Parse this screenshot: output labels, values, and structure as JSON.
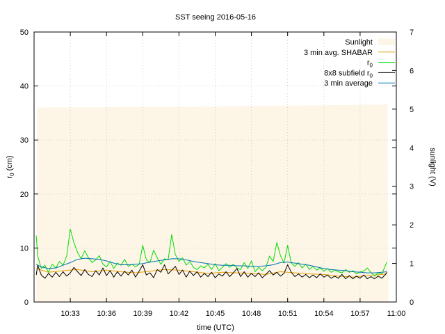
{
  "chart_data": {
    "type": "line",
    "title": "SST seeing 2016-05-16",
    "xlabel": "time (UTC)",
    "ylabel_main": "r",
    "ylabel_sub": "0",
    "ylabel_unit": " (cm)",
    "y2label": "sunlight (V)",
    "xlim": [
      10.5,
      11.0
    ],
    "ylim": [
      0,
      50
    ],
    "y2lim": [
      0,
      7
    ],
    "grid": true,
    "legend_position": "top-right",
    "x_ticks": [
      {
        "value": 10.55,
        "label": "10:33"
      },
      {
        "value": 10.6,
        "label": "10:36"
      },
      {
        "value": 10.65,
        "label": "10:39"
      },
      {
        "value": 10.7,
        "label": "10:42"
      },
      {
        "value": 10.75,
        "label": "10:45"
      },
      {
        "value": 10.8,
        "label": "10:48"
      },
      {
        "value": 10.85,
        "label": "10:51"
      },
      {
        "value": 10.9,
        "label": "10:54"
      },
      {
        "value": 10.95,
        "label": "10:57"
      },
      {
        "value": 11.0,
        "label": "11:00"
      }
    ],
    "y_ticks": [
      "0",
      "10",
      "20",
      "30",
      "40",
      "50"
    ],
    "y2_ticks": [
      "0",
      "1",
      "2",
      "3",
      "4",
      "5",
      "6",
      "7"
    ],
    "series": [
      {
        "name": "Sunlight",
        "legend_main": "Sunlight",
        "legend_sub": "",
        "kind": "filled",
        "axis": "y2",
        "color": "#fdf5e6",
        "x": [
          10.503,
          10.504,
          10.6,
          10.75,
          10.9,
          10.988,
          10.989
        ],
        "y": [
          0,
          5.04,
          5.05,
          5.07,
          5.1,
          5.12,
          0
        ]
      },
      {
        "name": "3 min avg. SHABAR",
        "legend_main": "3 min avg. SHABAR",
        "legend_sub": "",
        "kind": "line",
        "axis": "y",
        "color": "#e69f00",
        "x": [
          10.503,
          10.52,
          10.54,
          10.56,
          10.58,
          10.6,
          10.62,
          10.64,
          10.66,
          10.68,
          10.7,
          10.72,
          10.74,
          10.76,
          10.78,
          10.8,
          10.82,
          10.84,
          10.86,
          10.88,
          10.9,
          10.92,
          10.94,
          10.96,
          10.98,
          10.987
        ],
        "y": [
          6.2,
          5.5,
          5.8,
          6.0,
          5.6,
          5.9,
          5.6,
          5.4,
          5.7,
          6.0,
          5.9,
          5.6,
          5.3,
          5.5,
          5.4,
          5.3,
          5.1,
          5.6,
          5.4,
          5.2,
          5.1,
          4.8,
          4.6,
          4.9,
          5.1,
          5.2
        ]
      },
      {
        "name": "r0",
        "legend_main": "r",
        "legend_sub": "0",
        "kind": "line",
        "axis": "y",
        "color": "#00dd00",
        "x": [
          10.503,
          10.505,
          10.51,
          10.515,
          10.52,
          10.525,
          10.53,
          10.535,
          10.54,
          10.545,
          10.55,
          10.555,
          10.56,
          10.565,
          10.57,
          10.575,
          10.58,
          10.585,
          10.59,
          10.595,
          10.6,
          10.605,
          10.61,
          10.615,
          10.62,
          10.625,
          10.63,
          10.635,
          10.64,
          10.645,
          10.65,
          10.655,
          10.66,
          10.665,
          10.67,
          10.675,
          10.68,
          10.685,
          10.69,
          10.695,
          10.7,
          10.705,
          10.71,
          10.715,
          10.72,
          10.725,
          10.73,
          10.735,
          10.74,
          10.745,
          10.75,
          10.755,
          10.76,
          10.765,
          10.77,
          10.775,
          10.78,
          10.785,
          10.79,
          10.795,
          10.8,
          10.805,
          10.81,
          10.815,
          10.82,
          10.825,
          10.83,
          10.835,
          10.84,
          10.845,
          10.85,
          10.855,
          10.86,
          10.865,
          10.87,
          10.875,
          10.88,
          10.885,
          10.89,
          10.895,
          10.9,
          10.905,
          10.91,
          10.915,
          10.92,
          10.925,
          10.93,
          10.935,
          10.94,
          10.945,
          10.95,
          10.955,
          10.96,
          10.965,
          10.97,
          10.975,
          10.98,
          10.985,
          10.987
        ],
        "y": [
          12.3,
          8.5,
          6.2,
          6.8,
          5.5,
          7.0,
          6.3,
          7.5,
          6.8,
          8.5,
          13.5,
          11.0,
          9.2,
          8.0,
          9.5,
          8.2,
          7.3,
          7.8,
          8.6,
          7.0,
          6.5,
          7.5,
          6.2,
          7.2,
          6.8,
          7.9,
          6.6,
          7.0,
          6.5,
          7.0,
          10.5,
          7.8,
          7.3,
          9.6,
          8.2,
          7.0,
          8.0,
          7.8,
          12.5,
          8.8,
          7.5,
          8.2,
          6.8,
          7.5,
          6.4,
          6.0,
          6.7,
          6.3,
          7.0,
          6.0,
          7.1,
          5.8,
          6.4,
          7.1,
          6.4,
          7.0,
          6.3,
          6.0,
          7.3,
          6.2,
          7.6,
          5.6,
          6.4,
          5.8,
          6.4,
          8.5,
          7.5,
          11.0,
          8.6,
          7.2,
          10.5,
          7.2,
          6.6,
          7.3,
          6.3,
          7.0,
          6.0,
          6.6,
          5.9,
          6.3,
          5.7,
          6.2,
          5.5,
          5.9,
          5.6,
          5.4,
          6.0,
          5.5,
          5.8,
          5.2,
          5.6,
          5.7,
          6.3,
          5.5,
          4.8,
          5.4,
          5.2,
          6.8,
          7.4
        ]
      },
      {
        "name": "8x8 subfield r0",
        "legend_main": "8x8 subfield r",
        "legend_sub": "0",
        "kind": "line",
        "axis": "y",
        "color": "#000000",
        "x": [
          10.503,
          10.505,
          10.51,
          10.515,
          10.52,
          10.525,
          10.53,
          10.535,
          10.54,
          10.545,
          10.55,
          10.555,
          10.56,
          10.565,
          10.57,
          10.575,
          10.58,
          10.585,
          10.59,
          10.595,
          10.6,
          10.605,
          10.61,
          10.615,
          10.62,
          10.625,
          10.63,
          10.635,
          10.64,
          10.645,
          10.65,
          10.655,
          10.66,
          10.665,
          10.67,
          10.675,
          10.68,
          10.685,
          10.69,
          10.695,
          10.7,
          10.705,
          10.71,
          10.715,
          10.72,
          10.725,
          10.73,
          10.735,
          10.74,
          10.745,
          10.75,
          10.755,
          10.76,
          10.765,
          10.77,
          10.775,
          10.78,
          10.785,
          10.79,
          10.795,
          10.8,
          10.805,
          10.81,
          10.815,
          10.82,
          10.825,
          10.83,
          10.835,
          10.84,
          10.845,
          10.85,
          10.855,
          10.86,
          10.865,
          10.87,
          10.875,
          10.88,
          10.885,
          10.89,
          10.895,
          10.9,
          10.905,
          10.91,
          10.915,
          10.92,
          10.925,
          10.93,
          10.935,
          10.94,
          10.945,
          10.95,
          10.955,
          10.96,
          10.965,
          10.97,
          10.975,
          10.98,
          10.985,
          10.987
        ],
        "y": [
          5.0,
          6.8,
          5.0,
          4.4,
          5.3,
          4.6,
          5.5,
          4.7,
          5.6,
          4.8,
          5.4,
          6.4,
          5.6,
          4.9,
          6.0,
          5.1,
          4.7,
          5.8,
          5.0,
          6.3,
          4.9,
          5.8,
          4.6,
          5.6,
          4.8,
          5.7,
          5.0,
          5.9,
          4.6,
          5.7,
          6.9,
          5.0,
          5.4,
          4.5,
          6.0,
          5.5,
          6.9,
          5.2,
          5.9,
          6.6,
          5.1,
          5.9,
          4.6,
          5.7,
          4.9,
          5.6,
          4.6,
          5.3,
          4.7,
          5.5,
          4.5,
          5.2,
          4.8,
          5.6,
          4.7,
          5.4,
          6.2,
          4.7,
          5.6,
          4.6,
          5.3,
          4.7,
          5.4,
          4.5,
          5.1,
          5.8,
          5.0,
          5.5,
          4.8,
          5.3,
          6.9,
          5.5,
          4.7,
          5.2,
          4.6,
          5.1,
          4.5,
          5.0,
          4.5,
          5.2,
          4.6,
          5.0,
          4.4,
          4.8,
          4.4,
          5.1,
          4.3,
          4.9,
          4.3,
          4.8,
          4.4,
          5.0,
          4.3,
          4.7,
          4.3,
          4.8,
          4.4,
          5.1,
          5.5
        ]
      },
      {
        "name": "3 min average",
        "legend_main": "3 min average",
        "legend_sub": "",
        "kind": "line",
        "axis": "y",
        "color": "#0072b2",
        "x": [
          10.503,
          10.51,
          10.52,
          10.53,
          10.54,
          10.55,
          10.56,
          10.57,
          10.58,
          10.59,
          10.6,
          10.61,
          10.62,
          10.63,
          10.64,
          10.65,
          10.66,
          10.67,
          10.68,
          10.69,
          10.7,
          10.71,
          10.72,
          10.73,
          10.74,
          10.75,
          10.76,
          10.77,
          10.78,
          10.79,
          10.8,
          10.81,
          10.82,
          10.83,
          10.84,
          10.85,
          10.86,
          10.87,
          10.88,
          10.89,
          10.9,
          10.91,
          10.92,
          10.93,
          10.94,
          10.95,
          10.96,
          10.97,
          10.98,
          10.987
        ],
        "y": [
          7.0,
          6.5,
          6.2,
          6.3,
          6.8,
          7.3,
          7.9,
          8.1,
          8.0,
          7.9,
          7.6,
          7.2,
          6.9,
          6.9,
          7.0,
          7.1,
          7.4,
          7.6,
          7.8,
          8.0,
          8.0,
          7.8,
          7.5,
          7.3,
          7.1,
          6.9,
          6.8,
          6.8,
          6.7,
          6.7,
          6.6,
          6.6,
          6.7,
          6.9,
          7.3,
          7.4,
          7.2,
          7.0,
          6.8,
          6.5,
          6.2,
          6.0,
          5.9,
          5.8,
          5.6,
          5.5,
          5.4,
          5.4,
          5.5,
          5.6
        ]
      }
    ]
  }
}
